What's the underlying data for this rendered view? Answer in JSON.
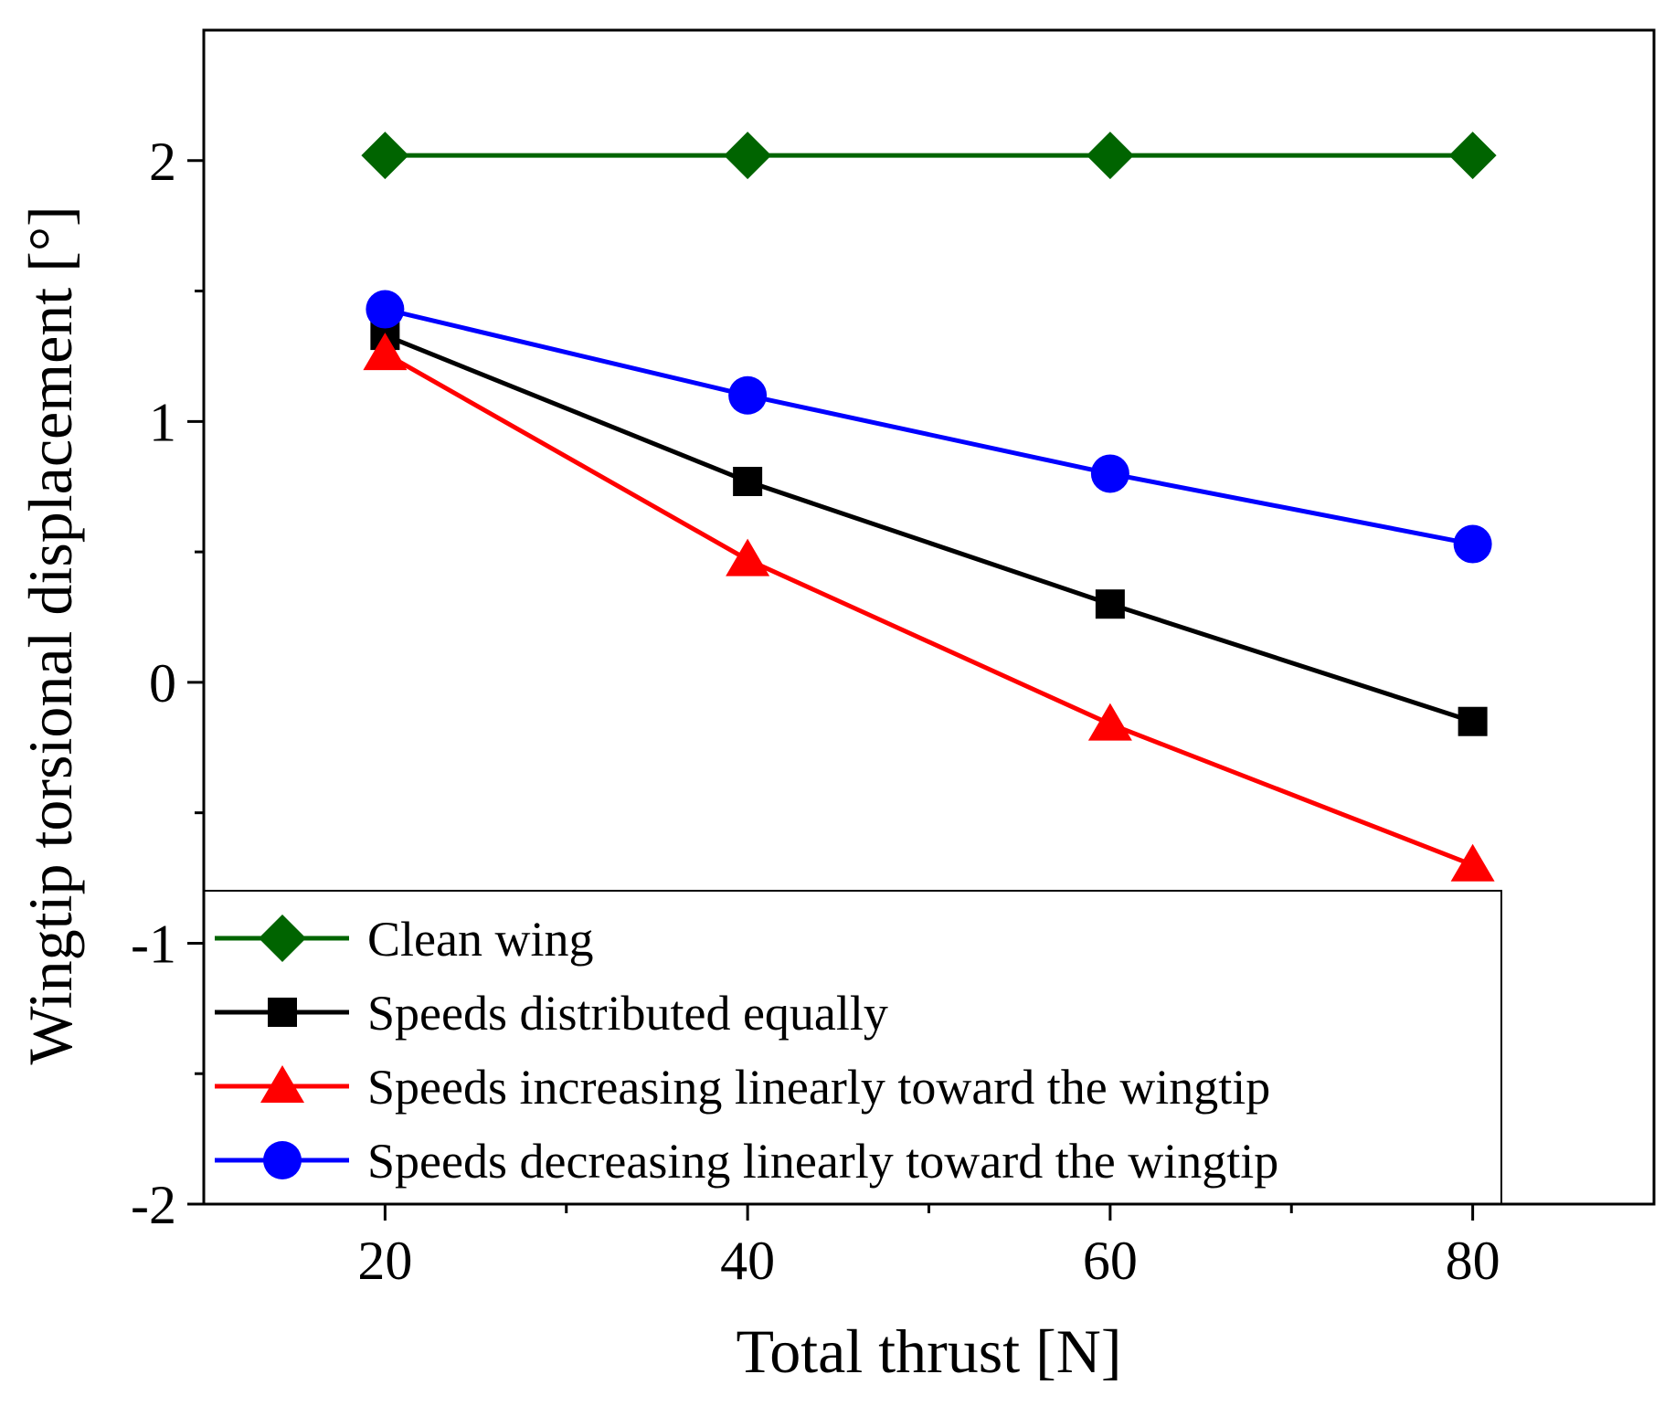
{
  "chart_data": {
    "type": "line",
    "xlabel": "Total thrust [N]",
    "ylabel": "Wingtip torsional displacement [°]",
    "xlim": [
      10,
      90
    ],
    "ylim": [
      -2,
      2.5
    ],
    "x": [
      20,
      40,
      60,
      80
    ],
    "xticks": [
      "20",
      "40",
      "60",
      "80"
    ],
    "yticks": [
      "-2",
      "-1",
      "0",
      "1",
      "2"
    ],
    "grid": false,
    "legend_position": "bottom-left",
    "series": [
      {
        "name": "Clean wing",
        "color": "#006400",
        "marker": "diamond",
        "values": [
          2.02,
          2.02,
          2.02,
          2.02
        ]
      },
      {
        "name": "Speeds distributed equally",
        "color": "#000000",
        "marker": "square",
        "values": [
          1.33,
          0.77,
          0.3,
          -0.15
        ]
      },
      {
        "name": "Speeds increasing linearly toward the wingtip",
        "color": "#ff0000",
        "marker": "triangle",
        "values": [
          1.26,
          0.47,
          -0.16,
          -0.7
        ]
      },
      {
        "name": "Speeds decreasing linearly toward the wingtip",
        "color": "#0000ff",
        "marker": "circle",
        "values": [
          1.43,
          1.1,
          0.8,
          0.53
        ]
      }
    ]
  }
}
